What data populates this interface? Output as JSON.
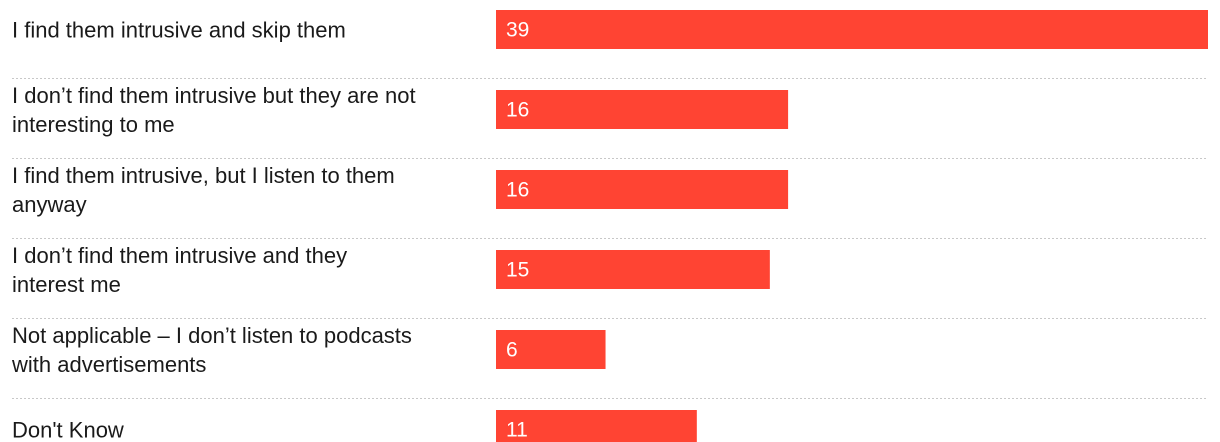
{
  "chart_data": {
    "type": "bar",
    "orientation": "horizontal",
    "title": "",
    "xlabel": "",
    "ylabel": "",
    "xlim": [
      0,
      39
    ],
    "bar_color": "#ff4433",
    "categories": [
      [
        "I find them intrusive and skip them"
      ],
      [
        "I don’t find them intrusive but they are not",
        "interesting to me"
      ],
      [
        "I find them intrusive, but I listen to them",
        "anyway"
      ],
      [
        "I don’t find them intrusive and they",
        "interest me"
      ],
      [
        "Not applicable – I don’t listen to podcasts",
        "with advertisements"
      ],
      [
        "Don't Know"
      ]
    ],
    "values": [
      39,
      16,
      16,
      15,
      6,
      11
    ]
  }
}
